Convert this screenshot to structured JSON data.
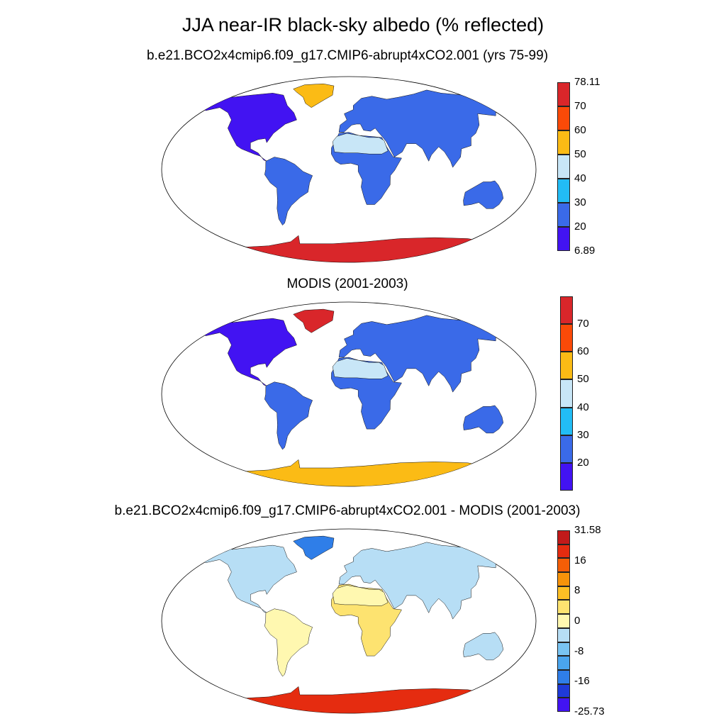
{
  "title": "JJA near-IR black-sky albedo (% reflected)",
  "panels": [
    {
      "id": "model",
      "title": "b.e21.BCO2x4cmip6.f09_g17.CMIP6-abrupt4xCO2.001 (yrs 75-99)",
      "colorbar": {
        "colors": [
          "#4213f2",
          "#3a6ae8",
          "#22bcf5",
          "#c8e6f7",
          "#fbbb15",
          "#fa4a08",
          "#d9262a"
        ],
        "labels": [
          "6.89",
          "20",
          "30",
          "40",
          "50",
          "60",
          "70",
          "78.11"
        ]
      },
      "region_colors": {
        "north_america": "#4213f2",
        "south_america": "#3a6ae8",
        "greenland": "#fbbb15",
        "europe_asia": "#3a6ae8",
        "africa": "#3a6ae8",
        "sahara": "#c8e6f7",
        "australia": "#3a6ae8",
        "antarctica": "#d9262a"
      }
    },
    {
      "id": "modis",
      "title": "MODIS (2001-2003)",
      "colorbar": {
        "colors": [
          "#4213f2",
          "#3a6ae8",
          "#22bcf5",
          "#c8e6f7",
          "#fbbb15",
          "#fa4a08",
          "#d9262a"
        ],
        "labels": [
          "",
          "20",
          "30",
          "40",
          "50",
          "60",
          "70",
          ""
        ]
      },
      "region_colors": {
        "north_america": "#4213f2",
        "south_america": "#3a6ae8",
        "greenland": "#d9262a",
        "europe_asia": "#3a6ae8",
        "africa": "#3a6ae8",
        "sahara": "#c8e6f7",
        "australia": "#3a6ae8",
        "antarctica": "#fbbb15"
      }
    },
    {
      "id": "diff",
      "title": "b.e21.BCO2x4cmip6.f09_g17.CMIP6-abrupt4xCO2.001 - MODIS (2001-2003)",
      "colorbar": {
        "colors": [
          "#4213f2",
          "#1f3ad8",
          "#2f7ee8",
          "#4aa5ee",
          "#79c4f2",
          "#b7def5",
          "#fff8b0",
          "#fde370",
          "#fdbf25",
          "#f7930a",
          "#f45e07",
          "#e52c10",
          "#c11a1a"
        ],
        "labels": [
          "-25.73",
          "-16",
          "-8",
          "0",
          "8",
          "16",
          "31.58"
        ]
      },
      "region_colors": {
        "north_america": "#b7def5",
        "south_america": "#fff8b0",
        "greenland": "#2f7ee8",
        "europe_asia": "#b7def5",
        "africa": "#fde370",
        "sahara": "#fff8b0",
        "australia": "#b7def5",
        "antarctica": "#e52c10"
      }
    }
  ]
}
